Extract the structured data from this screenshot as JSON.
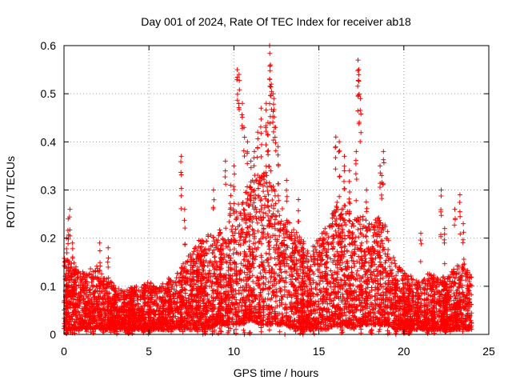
{
  "chart_data": {
    "type": "scatter",
    "title": "Day 001 of 2024, Rate Of TEC Index for receiver ab18",
    "xlabel": "GPS time / hours",
    "ylabel": "ROTI / TECUs",
    "xlim": [
      0,
      25
    ],
    "ylim": [
      0,
      0.6
    ],
    "xticks": [
      0,
      5,
      10,
      15,
      20,
      25
    ],
    "yticks": [
      0,
      0.1,
      0.2,
      0.3,
      0.4,
      0.5,
      0.6
    ],
    "xtick_labels": [
      "0",
      "5",
      "10",
      "15",
      "20",
      "25"
    ],
    "ytick_labels": [
      "0",
      "0.1",
      "0.2",
      "0.3",
      "0.4",
      "0.5",
      "0.6"
    ],
    "grid": true,
    "marker": "plus",
    "color": "#ff0000",
    "envelope": {
      "x": [
        0,
        0.5,
        1,
        1.5,
        2,
        2.5,
        3,
        3.5,
        4,
        4.5,
        5,
        5.5,
        6,
        6.5,
        7,
        7.5,
        8,
        8.5,
        9,
        9.5,
        10,
        10.5,
        11,
        11.5,
        12,
        12.5,
        13,
        13.5,
        14,
        14.5,
        15,
        15.5,
        16,
        16.5,
        17,
        17.5,
        18,
        18.5,
        19,
        19.5,
        20,
        20.5,
        21,
        21.5,
        22,
        22.5,
        23,
        23.5,
        24
      ],
      "upper": [
        0.16,
        0.15,
        0.13,
        0.13,
        0.14,
        0.12,
        0.1,
        0.09,
        0.1,
        0.1,
        0.11,
        0.1,
        0.11,
        0.12,
        0.15,
        0.17,
        0.2,
        0.21,
        0.2,
        0.23,
        0.27,
        0.3,
        0.32,
        0.33,
        0.36,
        0.3,
        0.25,
        0.22,
        0.2,
        0.18,
        0.2,
        0.23,
        0.3,
        0.27,
        0.24,
        0.25,
        0.23,
        0.26,
        0.22,
        0.15,
        0.13,
        0.12,
        0.11,
        0.13,
        0.12,
        0.12,
        0.14,
        0.15,
        0.12
      ],
      "lower": [
        0.01,
        0.01,
        0.01,
        0.01,
        0.01,
        0.01,
        0.01,
        0.01,
        0.01,
        0.01,
        0.01,
        0.01,
        0.01,
        0.01,
        0.01,
        0.01,
        0.01,
        0.01,
        0.02,
        0.02,
        0.02,
        0.02,
        0.03,
        0.02,
        0.02,
        0.02,
        0.02,
        0.01,
        0.01,
        0.01,
        0.01,
        0.01,
        0.02,
        0.02,
        0.01,
        0.02,
        0.02,
        0.02,
        0.02,
        0.01,
        0.01,
        0.01,
        0.01,
        0.01,
        0.01,
        0.01,
        0.01,
        0.01,
        0.01
      ]
    },
    "outliers": {
      "x": [
        0.15,
        0.25,
        0.35,
        0.5,
        2.1,
        2.6,
        6.9,
        7.1,
        8.8,
        9.5,
        9.8,
        10.0,
        10.2,
        10.3,
        10.5,
        10.6,
        10.8,
        11.0,
        11.2,
        11.4,
        11.6,
        11.9,
        12.0,
        12.1,
        12.15,
        12.2,
        12.3,
        12.35,
        12.45,
        12.6,
        13.1,
        13.8,
        16.0,
        16.2,
        16.5,
        16.8,
        17.2,
        17.3,
        17.35,
        17.45,
        17.8,
        18.6,
        18.7,
        18.8,
        21.0,
        22.2,
        22.4,
        23.0,
        23.3,
        23.5
      ],
      "y": [
        0.2,
        0.24,
        0.26,
        0.19,
        0.19,
        0.18,
        0.37,
        0.26,
        0.3,
        0.36,
        0.31,
        0.35,
        0.55,
        0.54,
        0.48,
        0.43,
        0.4,
        0.36,
        0.38,
        0.42,
        0.47,
        0.48,
        0.44,
        0.6,
        0.56,
        0.52,
        0.5,
        0.49,
        0.43,
        0.39,
        0.32,
        0.28,
        0.41,
        0.4,
        0.37,
        0.34,
        0.38,
        0.57,
        0.55,
        0.49,
        0.3,
        0.35,
        0.33,
        0.38,
        0.21,
        0.3,
        0.22,
        0.26,
        0.29,
        0.23
      ]
    }
  }
}
